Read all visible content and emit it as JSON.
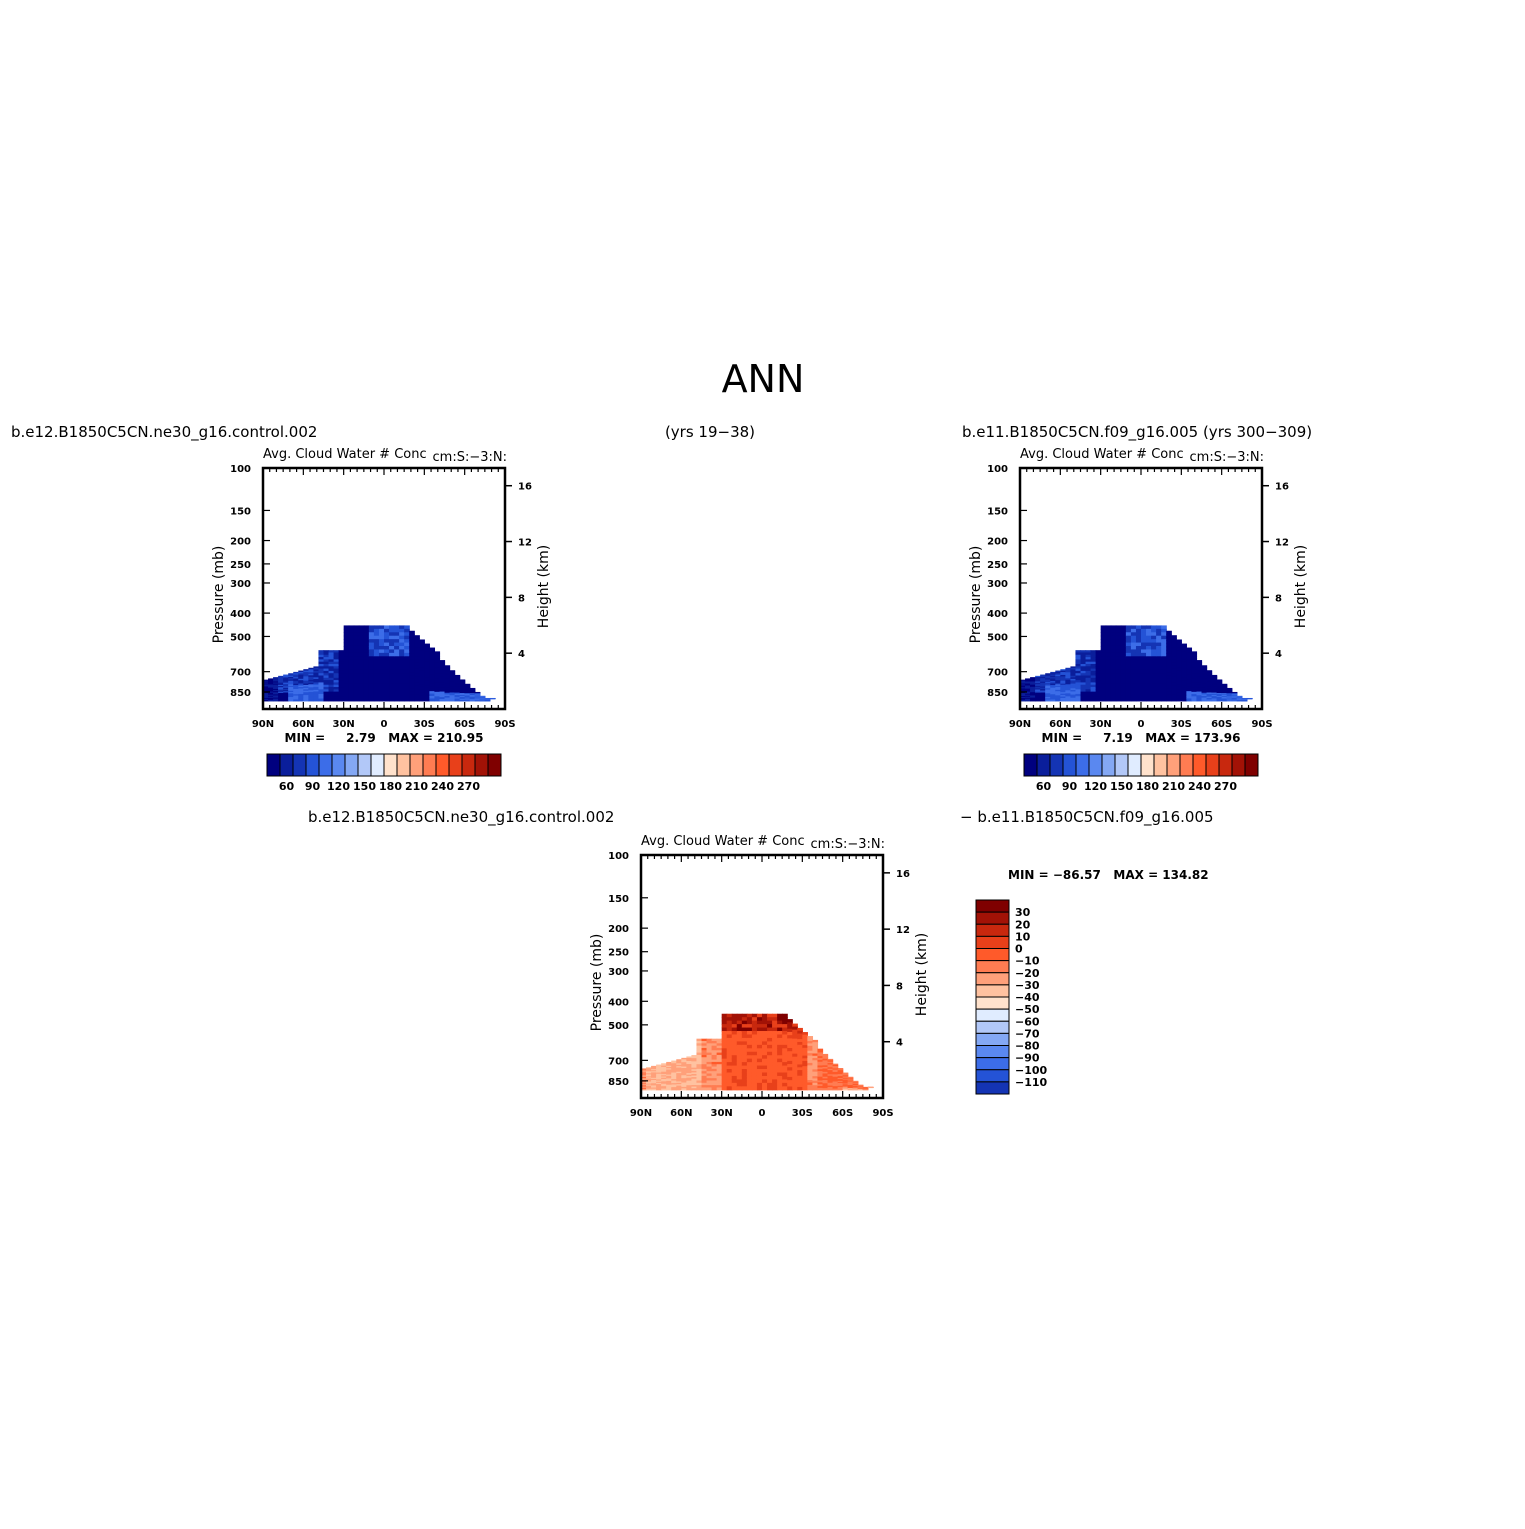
{
  "figure": {
    "title": "ANN",
    "header_left": "b.e12.B1850C5CN.ne30_g16.control.002",
    "header_center": "(yrs 19−38)",
    "header_right": "b.e11.B1850C5CN.f09_g16.005 (yrs 300−309)",
    "diff_title_left": "b.e12.B1850C5CN.ne30_g16.control.002",
    "diff_title_right": "− b.e11.B1850C5CN.f09_g16.005"
  },
  "colors": {
    "blues": [
      "#00007f",
      "#0a1e9b",
      "#1434b4",
      "#2453d6",
      "#3c6de8",
      "#5a88f0",
      "#84a8f4",
      "#b2c8f8",
      "#e0ecff"
    ],
    "reds": [
      "#ffe2cc",
      "#ffc2a0",
      "#ffa07a",
      "#ff7c52",
      "#ff5a2a",
      "#e8401a",
      "#c8280e",
      "#a21206",
      "#7f0000"
    ],
    "diff": [
      "#00007f",
      "#0a1e9b",
      "#1434b4",
      "#2453d6",
      "#3c6de8",
      "#5a88f0",
      "#84a8f4",
      "#b2c8f8",
      "#e0ecff",
      "#ffe2cc",
      "#ffc2a0",
      "#ffa07a",
      "#ff7c52",
      "#ff5a2a",
      "#e8401a",
      "#c8280e",
      "#a21206",
      "#7f0000"
    ]
  },
  "chart_data": [
    {
      "type": "heatmap",
      "title": "Avg. Cloud Water # Conc",
      "right_title": "cm:S:−3:N:",
      "ylabel": "Pressure  (mb)",
      "y2label": "Height  (km)",
      "x_ticks": [
        "90N",
        "60N",
        "30N",
        "0",
        "30S",
        "60S",
        "90S"
      ],
      "x_range": [
        90,
        -90
      ],
      "y_ticks": [
        100,
        150,
        200,
        250,
        300,
        400,
        500,
        700,
        850
      ],
      "y_range": [
        100,
        1000
      ],
      "y_log": true,
      "y2_ticks": [
        4,
        8,
        12,
        16
      ],
      "min_label": "MIN =     2.79   MAX = 210.95",
      "colorbar_labels": [
        "60",
        "90",
        "120",
        "150",
        "180",
        "210",
        "240",
        "270"
      ],
      "field_top_mb": 450,
      "field_bottom_mb": 925,
      "field_lat_range": [
        90,
        -84
      ]
    },
    {
      "type": "heatmap",
      "title": "Avg. Cloud Water # Conc",
      "right_title": "cm:S:−3:N:",
      "ylabel": "Pressure  (mb)",
      "y2label": "Height  (km)",
      "x_ticks": [
        "90N",
        "60N",
        "30N",
        "0",
        "30S",
        "60S",
        "90S"
      ],
      "x_range": [
        90,
        -90
      ],
      "y_ticks": [
        100,
        150,
        200,
        250,
        300,
        400,
        500,
        700,
        850
      ],
      "y_range": [
        100,
        1000
      ],
      "y_log": true,
      "y2_ticks": [
        4,
        8,
        12,
        16
      ],
      "min_label": "MIN =     7.19   MAX = 173.96",
      "colorbar_labels": [
        "60",
        "90",
        "120",
        "150",
        "180",
        "210",
        "240",
        "270"
      ],
      "field_top_mb": 450,
      "field_bottom_mb": 925,
      "field_lat_range": [
        90,
        -84
      ]
    },
    {
      "type": "heatmap",
      "title": "Avg. Cloud Water # Conc",
      "right_title": "cm:S:−3:N:",
      "ylabel": "Pressure  (mb)",
      "y2label": "Height  (km)",
      "x_ticks": [
        "90N",
        "60N",
        "30N",
        "0",
        "30S",
        "60S",
        "90S"
      ],
      "x_range": [
        90,
        -90
      ],
      "y_ticks": [
        100,
        150,
        200,
        250,
        300,
        400,
        500,
        700,
        850
      ],
      "y_range": [
        100,
        1000
      ],
      "y_log": true,
      "y2_ticks": [
        4,
        8,
        12,
        16
      ],
      "min_label": "MIN = −86.57   MAX = 134.82",
      "colorbar_labels": [
        "30",
        "20",
        "10",
        "0",
        "−10",
        "−20",
        "−30",
        "−40",
        "−50",
        "−60",
        "−70",
        "−80",
        "−90",
        "−100",
        "−110"
      ],
      "field_top_mb": 450,
      "field_bottom_mb": 925,
      "field_lat_range": [
        90,
        -84
      ]
    }
  ]
}
